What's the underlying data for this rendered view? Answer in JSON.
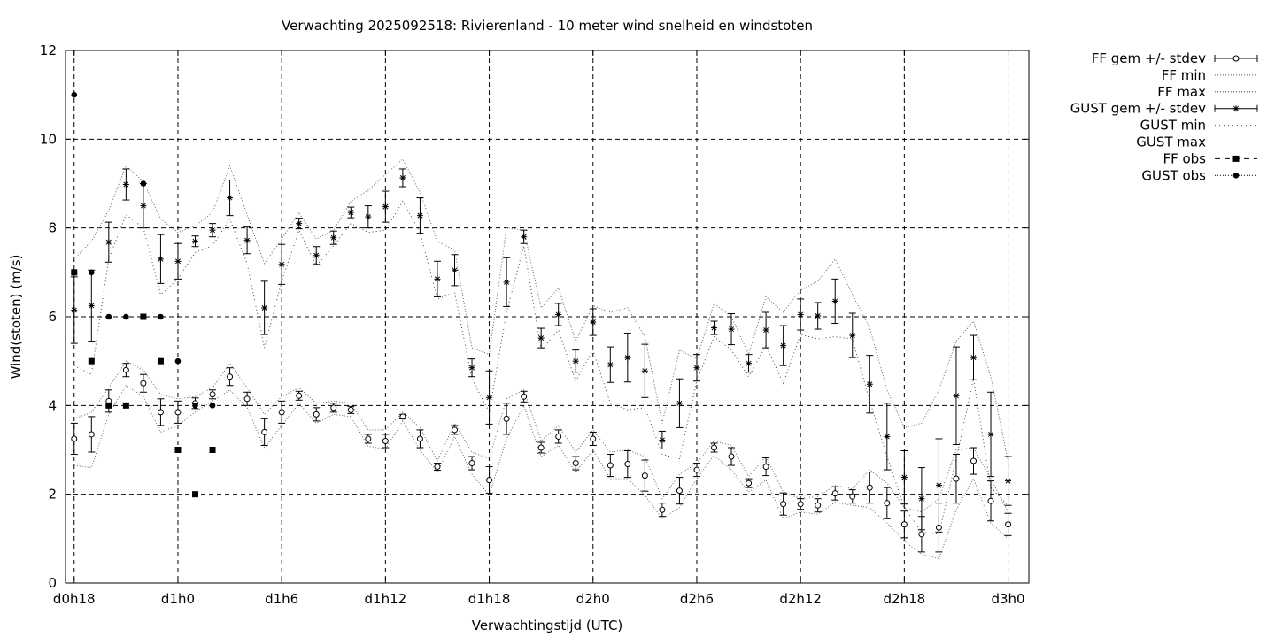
{
  "chart_data": {
    "type": "line",
    "title": "Verwachting 2025092518: Rivierenland - 10 meter wind snelheid en windstoten",
    "xlabel": "Verwachtingstijd (UTC)",
    "ylabel": "Wind(stoten) (m/s)",
    "ylim": [
      0,
      12
    ],
    "xlim": [
      -0.5,
      55.2
    ],
    "x_ticks": [
      {
        "x": 0,
        "label": "d0h18"
      },
      {
        "x": 6,
        "label": "d1h0"
      },
      {
        "x": 12,
        "label": "d1h6"
      },
      {
        "x": 18,
        "label": "d1h12"
      },
      {
        "x": 24,
        "label": "d1h18"
      },
      {
        "x": 30,
        "label": "d2h0"
      },
      {
        "x": 36,
        "label": "d2h6"
      },
      {
        "x": 42,
        "label": "d2h12"
      },
      {
        "x": 48,
        "label": "d2h18"
      },
      {
        "x": 54,
        "label": "d3h0"
      }
    ],
    "y_ticks": [
      0,
      2,
      4,
      6,
      8,
      10,
      12
    ],
    "grid": true,
    "legend_position": "right-outside",
    "legend": [
      "FF gem +/- stdev",
      "FF min",
      "FF max",
      "GUST gem +/- stdev",
      "GUST min",
      "GUST max",
      "FF obs",
      "GUST obs"
    ],
    "x": [
      0,
      1,
      2,
      3,
      4,
      5,
      6,
      7,
      8,
      9,
      10,
      11,
      12,
      13,
      14,
      15,
      16,
      17,
      18,
      19,
      20,
      21,
      22,
      23,
      24,
      25,
      26,
      27,
      28,
      29,
      30,
      31,
      32,
      33,
      34,
      35,
      36,
      37,
      38,
      39,
      40,
      41,
      42,
      43,
      44,
      45,
      46,
      47,
      48,
      49,
      50,
      51,
      52,
      53,
      54
    ],
    "series": [
      {
        "name": "FF gem +/- stdev",
        "marker": "circle",
        "mean": [
          3.25,
          3.35,
          4.1,
          4.8,
          4.5,
          3.85,
          3.85,
          4.05,
          4.25,
          4.65,
          4.15,
          3.4,
          3.85,
          4.22,
          3.8,
          3.95,
          3.9,
          3.25,
          3.2,
          3.75,
          3.25,
          2.62,
          3.45,
          2.7,
          2.32,
          3.7,
          4.2,
          3.05,
          3.3,
          2.7,
          3.25,
          2.65,
          2.68,
          2.42,
          1.65,
          2.08,
          2.55,
          3.05,
          2.85,
          2.25,
          2.62,
          1.78,
          1.78,
          1.75,
          2.02,
          1.95,
          2.15,
          1.8,
          1.32,
          1.1,
          1.25,
          2.35,
          2.75,
          1.85,
          1.32
        ],
        "stdev": [
          0.35,
          0.4,
          0.25,
          0.15,
          0.2,
          0.3,
          0.25,
          0.12,
          0.1,
          0.2,
          0.15,
          0.3,
          0.25,
          0.1,
          0.15,
          0.1,
          0.08,
          0.1,
          0.15,
          0.05,
          0.2,
          0.08,
          0.1,
          0.15,
          0.3,
          0.35,
          0.12,
          0.12,
          0.15,
          0.15,
          0.15,
          0.25,
          0.3,
          0.35,
          0.15,
          0.3,
          0.15,
          0.1,
          0.2,
          0.1,
          0.2,
          0.25,
          0.12,
          0.15,
          0.15,
          0.15,
          0.35,
          0.35,
          0.3,
          0.4,
          0.55,
          0.55,
          0.3,
          0.45,
          0.25
        ]
      },
      {
        "name": "FF min",
        "values": [
          2.65,
          2.6,
          3.8,
          4.45,
          4.2,
          3.4,
          3.55,
          3.85,
          4.1,
          4.35,
          3.95,
          3.05,
          3.55,
          4.05,
          3.6,
          3.8,
          3.75,
          3.08,
          3.02,
          3.65,
          3.0,
          2.5,
          3.3,
          2.45,
          1.98,
          3.25,
          4.0,
          2.85,
          3.1,
          2.5,
          3.0,
          2.35,
          2.35,
          1.98,
          1.45,
          1.7,
          2.35,
          2.88,
          2.55,
          2.05,
          2.32,
          1.45,
          1.6,
          1.55,
          1.82,
          1.75,
          1.7,
          1.35,
          0.95,
          0.65,
          0.55,
          1.65,
          2.35,
          1.35,
          1.0
        ]
      },
      {
        "name": "FF max",
        "values": [
          3.7,
          3.85,
          4.4,
          5.0,
          4.8,
          4.25,
          4.15,
          4.2,
          4.4,
          4.95,
          4.4,
          3.8,
          4.2,
          4.4,
          4.05,
          4.1,
          4.05,
          3.45,
          3.45,
          3.85,
          3.5,
          2.75,
          3.6,
          2.95,
          2.8,
          4.15,
          4.35,
          3.2,
          3.55,
          2.95,
          3.45,
          2.95,
          3.0,
          2.85,
          1.9,
          2.45,
          2.7,
          3.2,
          3.1,
          2.4,
          2.85,
          2.05,
          1.9,
          1.95,
          2.2,
          2.12,
          2.55,
          2.25,
          1.7,
          1.6,
          1.9,
          3.0,
          3.05,
          2.35,
          1.6
        ]
      },
      {
        "name": "GUST gem +/- stdev",
        "marker": "star",
        "mean": [
          6.15,
          6.25,
          7.68,
          8.98,
          8.5,
          7.3,
          7.25,
          7.7,
          7.95,
          8.68,
          7.72,
          6.2,
          7.18,
          8.1,
          7.38,
          7.78,
          8.35,
          8.25,
          8.48,
          9.13,
          8.28,
          6.85,
          7.05,
          4.85,
          4.18,
          6.78,
          7.8,
          5.52,
          6.05,
          5.0,
          5.88,
          4.92,
          5.08,
          4.78,
          3.22,
          4.05,
          4.85,
          5.75,
          5.72,
          4.95,
          5.7,
          5.35,
          6.05,
          6.02,
          6.35,
          5.58,
          4.48,
          3.3,
          2.38,
          1.9,
          2.2,
          4.22,
          5.08,
          3.35,
          2.3
        ]
      },
      {
        "name": "GUST gem stdev",
        "values": [
          0.75,
          0.8,
          0.45,
          0.35,
          0.5,
          0.55,
          0.4,
          0.12,
          0.15,
          0.4,
          0.3,
          0.6,
          0.45,
          0.12,
          0.2,
          0.15,
          0.12,
          0.25,
          0.35,
          0.2,
          0.4,
          0.4,
          0.35,
          0.2,
          0.6,
          0.55,
          0.15,
          0.22,
          0.25,
          0.25,
          0.3,
          0.4,
          0.55,
          0.6,
          0.2,
          0.55,
          0.3,
          0.15,
          0.35,
          0.2,
          0.4,
          0.45,
          0.35,
          0.3,
          0.5,
          0.5,
          0.65,
          0.75,
          0.6,
          0.7,
          1.05,
          1.1,
          0.5,
          0.95,
          0.55
        ]
      },
      {
        "name": "GUST min",
        "values": [
          4.9,
          4.7,
          7.3,
          8.3,
          8.0,
          6.5,
          6.85,
          7.45,
          7.6,
          8.2,
          7.2,
          5.3,
          6.8,
          7.95,
          7.15,
          7.6,
          8.1,
          7.9,
          7.95,
          8.6,
          7.9,
          6.4,
          6.55,
          4.6,
          3.85,
          6.1,
          7.6,
          5.25,
          5.7,
          4.55,
          5.25,
          4.05,
          3.9,
          3.95,
          2.9,
          2.8,
          4.55,
          5.55,
          5.25,
          4.65,
          5.35,
          4.5,
          5.6,
          5.5,
          5.55,
          5.5,
          4.1,
          2.85,
          1.7,
          1.15,
          1.1,
          2.8,
          4.6,
          2.15,
          1.75
        ]
      },
      {
        "name": "GUST max",
        "values": [
          7.3,
          7.7,
          8.4,
          9.4,
          9.05,
          8.2,
          7.9,
          8.05,
          8.35,
          9.4,
          8.3,
          7.2,
          7.75,
          8.35,
          7.75,
          7.95,
          8.6,
          8.85,
          9.2,
          9.55,
          8.8,
          7.7,
          7.5,
          5.3,
          5.15,
          8.0,
          7.95,
          6.2,
          6.65,
          5.45,
          6.25,
          6.1,
          6.2,
          5.55,
          3.6,
          5.25,
          5.05,
          6.3,
          6.0,
          5.15,
          6.45,
          6.1,
          6.6,
          6.8,
          7.3,
          6.5,
          5.75,
          4.35,
          3.5,
          3.6,
          4.35,
          5.45,
          5.9,
          4.65,
          2.75
        ]
      },
      {
        "name": "FF obs",
        "marker": "square",
        "x": [
          0,
          1,
          2,
          3,
          4,
          5,
          6,
          7,
          8
        ],
        "values": [
          7,
          5,
          4,
          4,
          6,
          5,
          3,
          2,
          3
        ]
      },
      {
        "name": "GUST obs",
        "marker": "dot",
        "x": [
          0,
          1,
          2,
          3,
          4,
          5,
          6,
          7,
          8
        ],
        "values": [
          11,
          7,
          6,
          6,
          9,
          6,
          5,
          4,
          4
        ]
      }
    ]
  }
}
